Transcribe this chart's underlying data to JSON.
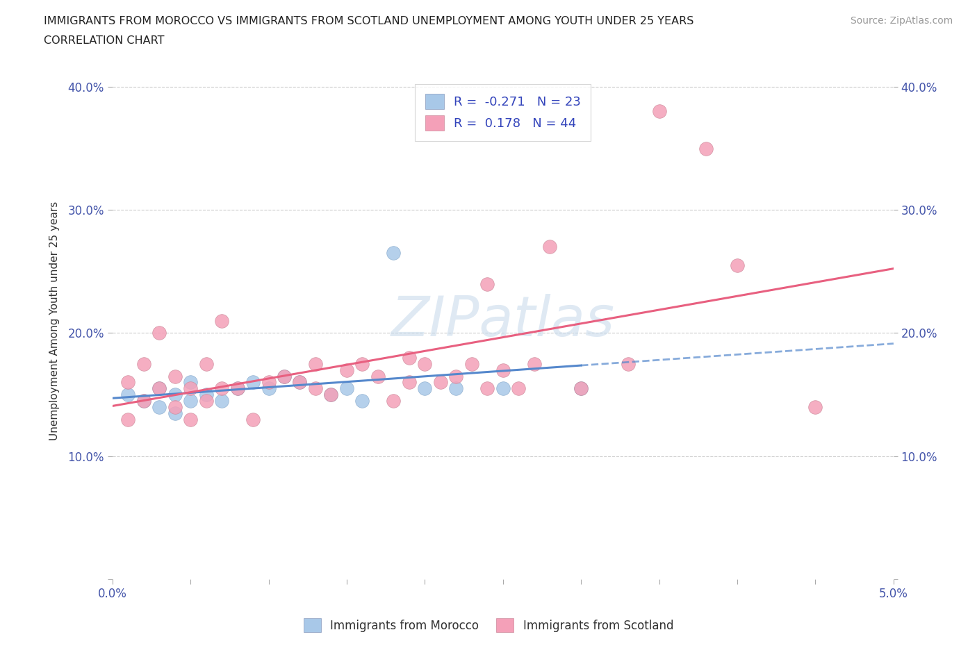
{
  "title_line1": "IMMIGRANTS FROM MOROCCO VS IMMIGRANTS FROM SCOTLAND UNEMPLOYMENT AMONG YOUTH UNDER 25 YEARS",
  "title_line2": "CORRELATION CHART",
  "source_text": "Source: ZipAtlas.com",
  "ylabel": "Unemployment Among Youth under 25 years",
  "xlim": [
    0.0,
    0.05
  ],
  "ylim": [
    0.0,
    0.42
  ],
  "morocco_R": -0.271,
  "morocco_N": 23,
  "scotland_R": 0.178,
  "scotland_N": 44,
  "morocco_color": "#a8c8e8",
  "scotland_color": "#f4a0b8",
  "morocco_line_color": "#5588cc",
  "scotland_line_color": "#e86080",
  "background_color": "#ffffff",
  "watermark": "ZIPatlas",
  "morocco_x": [
    0.001,
    0.002,
    0.003,
    0.003,
    0.004,
    0.004,
    0.005,
    0.005,
    0.006,
    0.007,
    0.008,
    0.009,
    0.01,
    0.011,
    0.012,
    0.014,
    0.015,
    0.016,
    0.018,
    0.02,
    0.022,
    0.025,
    0.03
  ],
  "morocco_y": [
    0.15,
    0.145,
    0.14,
    0.155,
    0.135,
    0.15,
    0.145,
    0.16,
    0.15,
    0.145,
    0.155,
    0.16,
    0.155,
    0.165,
    0.16,
    0.15,
    0.155,
    0.145,
    0.265,
    0.155,
    0.155,
    0.155,
    0.155
  ],
  "scotland_x": [
    0.001,
    0.001,
    0.002,
    0.002,
    0.003,
    0.003,
    0.004,
    0.004,
    0.005,
    0.005,
    0.006,
    0.006,
    0.007,
    0.007,
    0.008,
    0.009,
    0.01,
    0.011,
    0.012,
    0.013,
    0.013,
    0.014,
    0.015,
    0.016,
    0.017,
    0.018,
    0.019,
    0.019,
    0.02,
    0.021,
    0.022,
    0.023,
    0.024,
    0.024,
    0.025,
    0.026,
    0.027,
    0.028,
    0.03,
    0.033,
    0.035,
    0.038,
    0.04,
    0.045
  ],
  "scotland_y": [
    0.16,
    0.13,
    0.145,
    0.175,
    0.155,
    0.2,
    0.14,
    0.165,
    0.155,
    0.13,
    0.145,
    0.175,
    0.155,
    0.21,
    0.155,
    0.13,
    0.16,
    0.165,
    0.16,
    0.155,
    0.175,
    0.15,
    0.17,
    0.175,
    0.165,
    0.145,
    0.16,
    0.18,
    0.175,
    0.16,
    0.165,
    0.175,
    0.155,
    0.24,
    0.17,
    0.155,
    0.175,
    0.27,
    0.155,
    0.175,
    0.38,
    0.35,
    0.255,
    0.14
  ]
}
